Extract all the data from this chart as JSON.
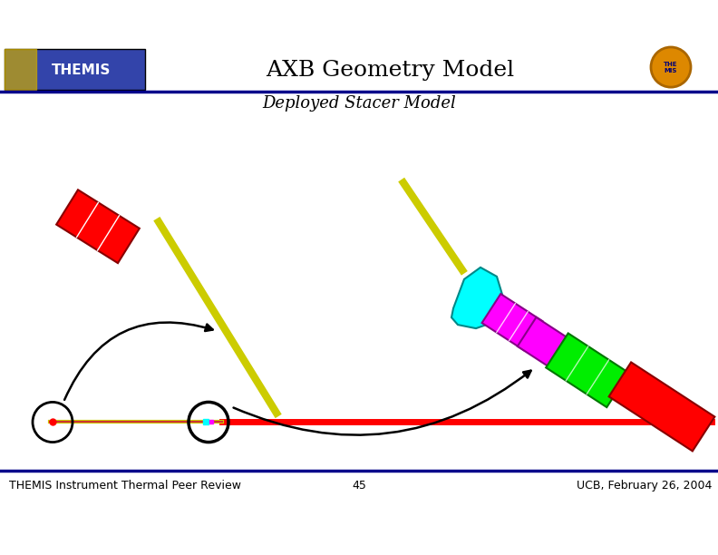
{
  "title": "AXB Geometry Model",
  "subtitle": "Deployed Stacer Model",
  "footer_left": "THEMIS Instrument Thermal Peer Review",
  "footer_center": "45",
  "footer_right": "UCB, February 26, 2004",
  "bg_color": "#ffffff",
  "header_line_color": "#00008B",
  "footer_line_color": "#00008B",
  "title_fontsize": 18,
  "subtitle_fontsize": 13,
  "footer_fontsize": 9
}
